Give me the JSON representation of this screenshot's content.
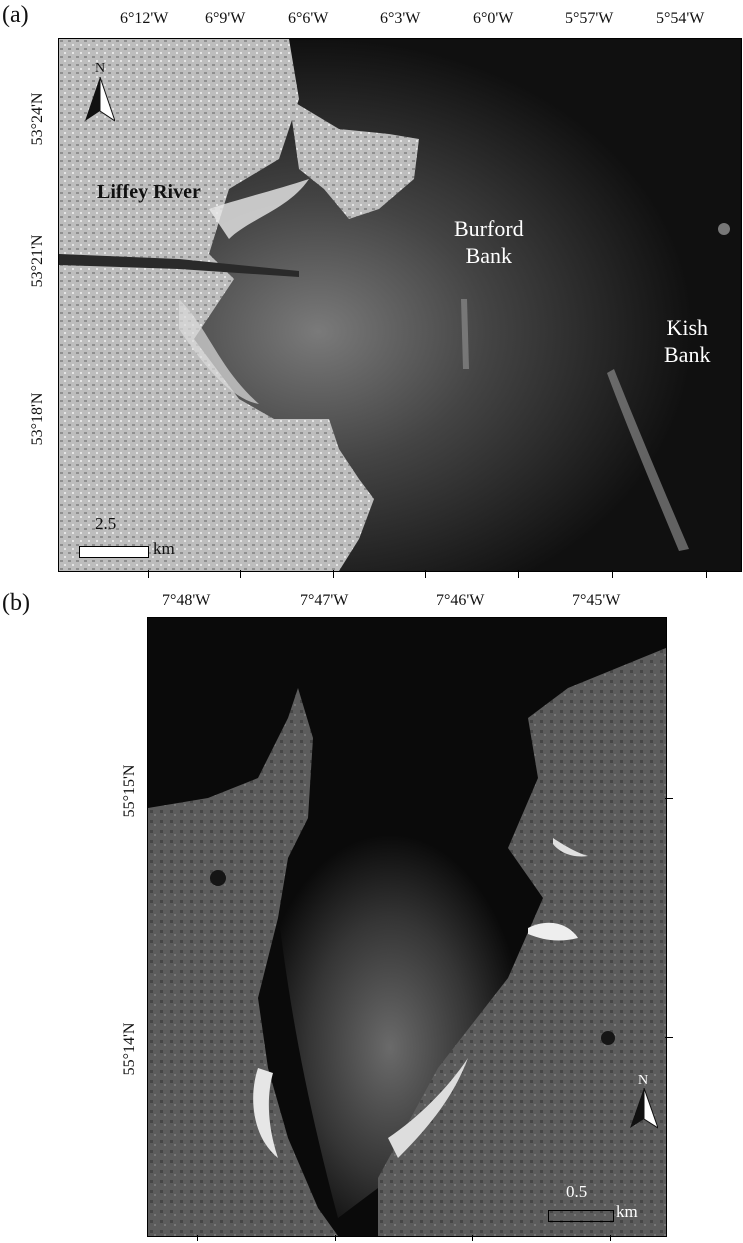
{
  "panel_a": {
    "label": "(a)",
    "lon_labels": [
      "6°12'W",
      "6°9'W",
      "6°6'W",
      "6°3'W",
      "6°0'W",
      "5°57'W",
      "5°54'W"
    ],
    "lat_labels": [
      "53°24'N",
      "53°21'N",
      "53°18'N"
    ],
    "places": {
      "river": "Liffey River",
      "burford_line1": "Burford",
      "burford_line2": "Bank",
      "kish_line1": "Kish",
      "kish_line2": "Bank"
    },
    "north": "N",
    "scale_value": "2.5",
    "scale_unit": "km"
  },
  "panel_b": {
    "label": "(b)",
    "lon_labels": [
      "7°48'W",
      "7°47'W",
      "7°46'W",
      "7°45'W"
    ],
    "lat_labels": [
      "55°15'N",
      "55°14'N"
    ],
    "north": "N",
    "scale_value": "0.5",
    "scale_unit": "km"
  }
}
